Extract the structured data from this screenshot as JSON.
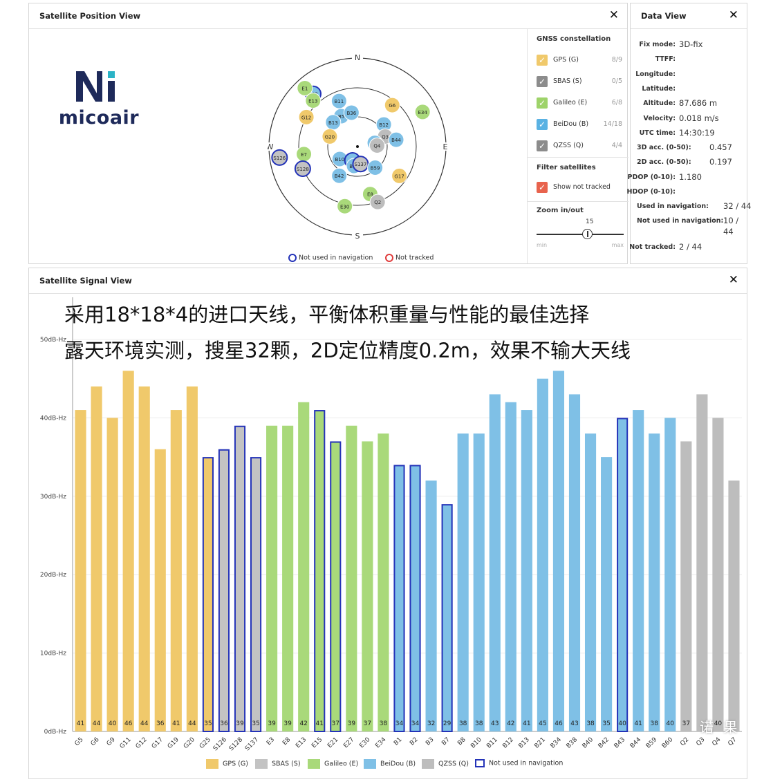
{
  "position_view": {
    "title": "Satellite Position View",
    "close": "✕",
    "logo_text": "micoair",
    "compass": {
      "n": "N",
      "e": "E",
      "s": "S",
      "w": "W"
    },
    "sky_sats": [
      {
        "id": "B43",
        "type": "B",
        "nn": true,
        "az": 320,
        "el": 20
      },
      {
        "id": "E1",
        "type": "E",
        "nn": false,
        "az": 318,
        "el": 10
      },
      {
        "id": "E13",
        "type": "E",
        "nn": false,
        "az": 316,
        "el": 25
      },
      {
        "id": "B11",
        "type": "B",
        "nn": false,
        "az": 338,
        "el": 40
      },
      {
        "id": "G6",
        "type": "G",
        "nn": false,
        "az": 40,
        "el": 35
      },
      {
        "id": "B5",
        "type": "B",
        "nn": false,
        "az": 332,
        "el": 55
      },
      {
        "id": "B36",
        "type": "B",
        "nn": false,
        "az": 350,
        "el": 55
      },
      {
        "id": "E34",
        "type": "E",
        "nn": false,
        "az": 62,
        "el": 15
      },
      {
        "id": "G12",
        "type": "G",
        "nn": false,
        "az": 300,
        "el": 30
      },
      {
        "id": "B13",
        "type": "B",
        "nn": false,
        "az": 315,
        "el": 55
      },
      {
        "id": "B12",
        "type": "B",
        "nn": false,
        "az": 50,
        "el": 55
      },
      {
        "id": "Q3",
        "type": "Q",
        "nn": false,
        "az": 70,
        "el": 60
      },
      {
        "id": "B1",
        "type": "B",
        "nn": false,
        "az": 78,
        "el": 72
      },
      {
        "id": "B44",
        "type": "B",
        "nn": false,
        "az": 80,
        "el": 50
      },
      {
        "id": "Q4",
        "type": "Q",
        "nn": false,
        "az": 87,
        "el": 70
      },
      {
        "id": "G20",
        "type": "G",
        "nn": false,
        "az": 290,
        "el": 60
      },
      {
        "id": "E7",
        "type": "E",
        "nn": false,
        "az": 262,
        "el": 35
      },
      {
        "id": "S126",
        "type": "S",
        "nn": true,
        "az": 262,
        "el": 10
      },
      {
        "id": "S128",
        "type": "S",
        "nn": true,
        "az": 248,
        "el": 30
      },
      {
        "id": "B10",
        "type": "B",
        "nn": false,
        "az": 235,
        "el": 68
      },
      {
        "id": "B7",
        "type": "B",
        "nn": true,
        "az": 200,
        "el": 75
      },
      {
        "id": "B40",
        "type": "B",
        "nn": false,
        "az": 190,
        "el": 70
      },
      {
        "id": "S137",
        "type": "S",
        "nn": true,
        "az": 170,
        "el": 72
      },
      {
        "id": "B59",
        "type": "B",
        "nn": false,
        "az": 140,
        "el": 62
      },
      {
        "id": "G17",
        "type": "G",
        "nn": false,
        "az": 125,
        "el": 38
      },
      {
        "id": "B42",
        "type": "B",
        "nn": false,
        "az": 212,
        "el": 55
      },
      {
        "id": "E8",
        "type": "E",
        "nn": false,
        "az": 165,
        "el": 40
      },
      {
        "id": "Q2",
        "type": "Q",
        "nn": false,
        "az": 160,
        "el": 30
      },
      {
        "id": "E30",
        "type": "E",
        "nn": false,
        "az": 192,
        "el": 28
      }
    ],
    "gnss": {
      "title": "GNSS constellation",
      "items": [
        {
          "label": "GPS (G)",
          "count": "8/9",
          "color": "#f0c96b"
        },
        {
          "label": "SBAS (S)",
          "count": "0/5",
          "color": "#8c8c8c"
        },
        {
          "label": "Galileo (E)",
          "count": "6/8",
          "color": "#9ed36a"
        },
        {
          "label": "BeiDou (B)",
          "count": "14/18",
          "color": "#5ab2e3"
        },
        {
          "label": "QZSS (Q)",
          "count": "4/4",
          "color": "#8c8c8c"
        }
      ]
    },
    "filter": {
      "title": "Filter satellites",
      "label": "Show not tracked",
      "color": "#e8634d"
    },
    "zoom": {
      "title": "Zoom in/out",
      "value": "15",
      "min": "min",
      "max": "max",
      "level": 0.58
    },
    "legend": {
      "not_used": "Not used in navigation",
      "not_tracked": "Not tracked"
    }
  },
  "data_view": {
    "title": "Data View",
    "close": "✕",
    "rows": [
      {
        "label": "Fix mode:",
        "value": "3D-fix"
      },
      {
        "label": "TTFF:",
        "value": ""
      },
      {
        "label": "Longitude:",
        "value": ""
      },
      {
        "label": "Latitude:",
        "value": ""
      },
      {
        "label": "Altitude:",
        "value": "87.686 m"
      },
      {
        "label": "Velocity:",
        "value": "0.018 m/s"
      },
      {
        "label": "UTC time:",
        "value": "14:30:19"
      },
      {
        "label": "3D acc. (0-50):",
        "value": "0.457"
      },
      {
        "label": "2D acc. (0-50):",
        "value": "0.197"
      },
      {
        "label": "PDOP (0-10):",
        "value": "1.180"
      },
      {
        "label": "HDOP (0-10):",
        "value": ""
      },
      {
        "label": "Used in navigation:",
        "value": "32 / 44"
      },
      {
        "label": "Not used in navigation:",
        "value": "10 /"
      },
      {
        "label": "",
        "value": "44"
      },
      {
        "label": "Not tracked:",
        "value": "2 / 44"
      }
    ]
  },
  "signal_view": {
    "title": "Satellite Signal View",
    "close": "✕",
    "caption_line1": "采用18*18*4的进口天线，平衡体积重量与性能的最佳选择",
    "caption_line2": "露天环境实测，搜星32颗，2D定位精度0.2m，效果不输大天线",
    "watermark": "诺 果",
    "legend": {
      "gps": "GPS (G)",
      "sbas": "SBAS (S)",
      "galileo": "Galileo (E)",
      "beidou": "BeiDou (B)",
      "qzss": "QZSS (Q)",
      "not_used": "Not used in navigation"
    }
  },
  "colors": {
    "G": "#f0c96b",
    "S": "#c3c3c3",
    "E": "#a9d97a",
    "B": "#7fc0e6",
    "Q": "#bdbdbd",
    "nn_border": "#2433b8",
    "nt_border": "#e03c3c"
  },
  "chart_data": {
    "type": "bar",
    "ylabel": "",
    "ylim": [
      0,
      55
    ],
    "yticks": [
      "0dB-Hz",
      "10dB-Hz",
      "20dB-Hz",
      "30dB-Hz",
      "40dB-Hz",
      "50dB-Hz"
    ],
    "categories": [
      "G5",
      "G6",
      "G9",
      "G11",
      "G12",
      "G17",
      "G19",
      "G20",
      "G25",
      "S126",
      "S128",
      "S137",
      "E3",
      "E8",
      "E13",
      "E15",
      "E21",
      "E27",
      "E30",
      "E34",
      "B1",
      "B2",
      "B3",
      "B7",
      "B8",
      "B10",
      "B11",
      "B12",
      "B13",
      "B21",
      "B34",
      "B38",
      "B40",
      "B42",
      "B43",
      "B44",
      "B59",
      "B60",
      "Q2",
      "Q3",
      "Q4",
      "Q7"
    ],
    "values": [
      41,
      44,
      40,
      46,
      44,
      36,
      41,
      44,
      35,
      36,
      39,
      35,
      39,
      39,
      42,
      41,
      37,
      39,
      37,
      38,
      34,
      34,
      32,
      29,
      38,
      38,
      43,
      42,
      41,
      45,
      46,
      43,
      38,
      35,
      40,
      41,
      38,
      40,
      37,
      43,
      40,
      32
    ],
    "labels": [
      "41",
      "44",
      "40",
      "46",
      "44",
      "36",
      "41",
      "44",
      "35",
      "36",
      "39",
      "35",
      "39",
      "39",
      "42",
      "41",
      "37",
      "39",
      "37",
      "38",
      "34",
      "34",
      "32",
      "29",
      "38",
      "38",
      "43",
      "42",
      "41",
      "45",
      "46",
      "43",
      "38",
      "35",
      "40",
      "41",
      "38",
      "40",
      "37",
      "",
      "40",
      ""
    ],
    "types": [
      "G",
      "G",
      "G",
      "G",
      "G",
      "G",
      "G",
      "G",
      "G",
      "S",
      "S",
      "S",
      "E",
      "E",
      "E",
      "E",
      "E",
      "E",
      "E",
      "E",
      "B",
      "B",
      "B",
      "B",
      "B",
      "B",
      "B",
      "B",
      "B",
      "B",
      "B",
      "B",
      "B",
      "B",
      "B",
      "B",
      "B",
      "B",
      "Q",
      "Q",
      "Q",
      "Q"
    ],
    "not_used": [
      false,
      false,
      false,
      false,
      false,
      false,
      false,
      false,
      true,
      true,
      true,
      true,
      false,
      false,
      false,
      true,
      true,
      false,
      false,
      false,
      true,
      true,
      false,
      true,
      false,
      false,
      false,
      false,
      false,
      false,
      false,
      false,
      false,
      false,
      true,
      false,
      false,
      false,
      false,
      false,
      false,
      false
    ]
  }
}
